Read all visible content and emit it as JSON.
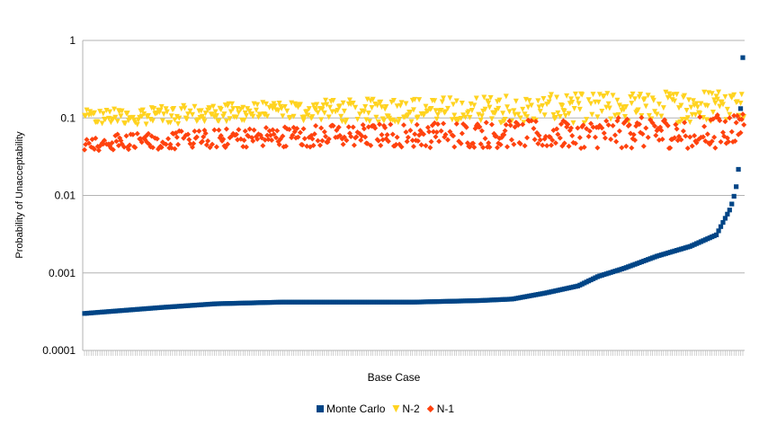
{
  "chart_data": {
    "type": "scatter",
    "title": "",
    "xlabel": "Base Case",
    "ylabel": "Probability of Unacceptability",
    "y_scale": "log",
    "ylim": [
      0.0001,
      1
    ],
    "y_ticks": [
      {
        "value": 1,
        "label": "1"
      },
      {
        "value": 0.1,
        "label": "0.1"
      },
      {
        "value": 0.01,
        "label": "0.01"
      },
      {
        "value": 0.001,
        "label": "0.001"
      },
      {
        "value": 0.0001,
        "label": "0.0001"
      }
    ],
    "x_count": 300,
    "grid": true,
    "legend_position": "bottom",
    "series": [
      {
        "name": "Monte Carlo",
        "marker": "square",
        "color": "#004586",
        "profile": [
          [
            0,
            0.0003
          ],
          [
            0.12,
            0.00036
          ],
          [
            0.2,
            0.0004
          ],
          [
            0.3,
            0.00042
          ],
          [
            0.5,
            0.00042
          ],
          [
            0.6,
            0.00044
          ],
          [
            0.65,
            0.00046
          ],
          [
            0.7,
            0.00055
          ],
          [
            0.75,
            0.00068
          ],
          [
            0.78,
            0.0009
          ],
          [
            0.82,
            0.00115
          ],
          [
            0.87,
            0.00165
          ],
          [
            0.92,
            0.0022
          ],
          [
            0.96,
            0.0031
          ],
          [
            0.97,
            0.0045
          ],
          [
            0.98,
            0.0065
          ],
          [
            0.985,
            0.0085
          ],
          [
            0.99,
            0.013
          ],
          [
            0.993,
            0.018
          ],
          [
            0.995,
            0.06
          ],
          [
            0.998,
            0.25
          ],
          [
            1.0,
            0.6
          ]
        ]
      },
      {
        "name": "N-2",
        "marker": "triangle-down",
        "color": "#ffd320",
        "profile": [
          [
            0,
            0.1
          ],
          [
            0.3,
            0.12
          ],
          [
            0.7,
            0.13
          ],
          [
            0.95,
            0.14
          ],
          [
            1.0,
            0.16
          ]
        ]
      },
      {
        "name": "N-1",
        "marker": "diamond",
        "color": "#ff420e",
        "profile": [
          [
            0,
            0.047
          ],
          [
            0.3,
            0.058
          ],
          [
            0.7,
            0.062
          ],
          [
            0.95,
            0.066
          ],
          [
            1.0,
            0.075
          ]
        ]
      }
    ]
  }
}
